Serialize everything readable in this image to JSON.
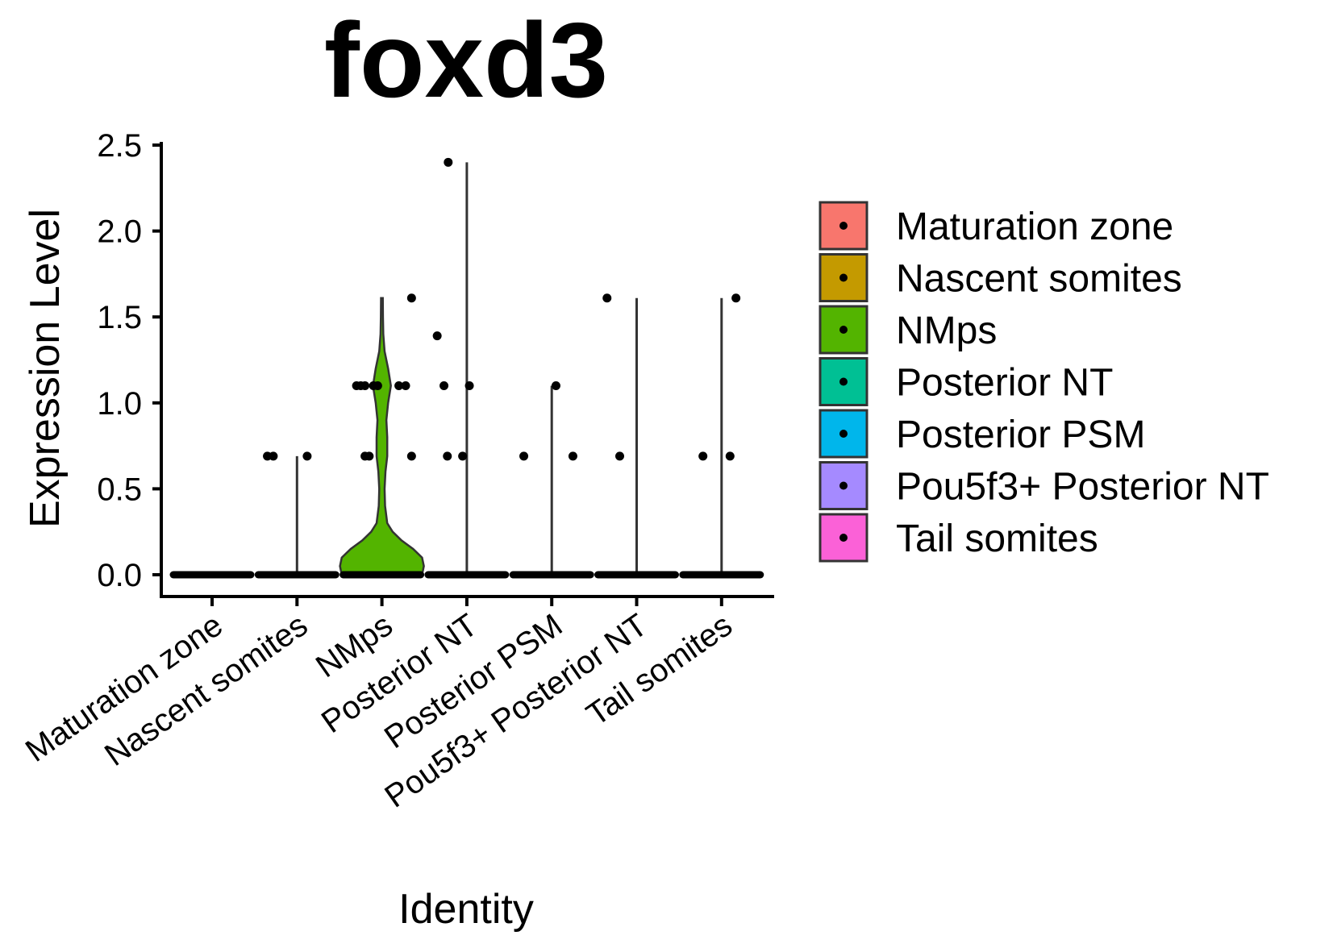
{
  "chart_data": {
    "type": "violin",
    "title": "foxd3",
    "xlabel": "Identity",
    "ylabel": "Expression Level",
    "ylim": [
      0,
      2.5
    ],
    "y_ticks": [
      "0.0",
      "0.5",
      "1.0",
      "1.5",
      "2.0",
      "2.5"
    ],
    "grid": false,
    "legend_position": "right",
    "categories": [
      "Maturation zone",
      "Nascent somites",
      "NMps",
      "Posterior NT",
      "Posterior PSM",
      "Pou5f3+ Posterior NT",
      "Tail somites"
    ],
    "colors": [
      "#F8766D",
      "#C49A00",
      "#53B400",
      "#00C094",
      "#00B6EB",
      "#A58AFF",
      "#FB61D7"
    ],
    "series": [
      {
        "name": "Maturation zone",
        "max": 0.0,
        "points": [
          {
            "x": -0.4,
            "y": 0
          },
          {
            "x": -0.3,
            "y": 0
          },
          {
            "x": -0.2,
            "y": 0
          },
          {
            "x": -0.1,
            "y": 0
          },
          {
            "x": 0.0,
            "y": 0
          },
          {
            "x": 0.1,
            "y": 0
          },
          {
            "x": 0.2,
            "y": 0
          },
          {
            "x": 0.3,
            "y": 0
          },
          {
            "x": 0.4,
            "y": 0
          }
        ]
      },
      {
        "name": "Nascent somites",
        "max": 0.69,
        "points": [
          {
            "x": -0.35,
            "y": 0.69
          },
          {
            "x": -0.28,
            "y": 0.69
          },
          {
            "x": 0.12,
            "y": 0.69
          },
          {
            "x": -0.4,
            "y": 0
          },
          {
            "x": -0.3,
            "y": 0
          },
          {
            "x": -0.2,
            "y": 0
          },
          {
            "x": -0.1,
            "y": 0
          },
          {
            "x": 0.0,
            "y": 0
          },
          {
            "x": 0.1,
            "y": 0
          },
          {
            "x": 0.2,
            "y": 0
          },
          {
            "x": 0.3,
            "y": 0
          },
          {
            "x": 0.4,
            "y": 0
          }
        ]
      },
      {
        "name": "NMps",
        "max": 1.61,
        "density": [
          [
            0.0,
            0.45
          ],
          [
            0.05,
            0.47
          ],
          [
            0.1,
            0.45
          ],
          [
            0.15,
            0.35
          ],
          [
            0.2,
            0.22
          ],
          [
            0.25,
            0.12
          ],
          [
            0.3,
            0.06
          ],
          [
            0.4,
            0.035
          ],
          [
            0.5,
            0.03
          ],
          [
            0.6,
            0.04
          ],
          [
            0.69,
            0.06
          ],
          [
            0.8,
            0.06
          ],
          [
            0.9,
            0.05
          ],
          [
            1.0,
            0.07
          ],
          [
            1.1,
            0.1
          ],
          [
            1.2,
            0.07
          ],
          [
            1.3,
            0.03
          ],
          [
            1.4,
            0.015
          ],
          [
            1.5,
            0.012
          ],
          [
            1.61,
            0.01
          ]
        ],
        "points": [
          {
            "x": -0.3,
            "y": 1.1
          },
          {
            "x": -0.25,
            "y": 1.1
          },
          {
            "x": -0.2,
            "y": 1.1
          },
          {
            "x": -0.1,
            "y": 1.1
          },
          {
            "x": -0.05,
            "y": 1.1
          },
          {
            "x": 0.2,
            "y": 1.1
          },
          {
            "x": 0.28,
            "y": 1.1
          },
          {
            "x": -0.2,
            "y": 0.69
          },
          {
            "x": -0.15,
            "y": 0.69
          },
          {
            "x": 0.35,
            "y": 0.69
          },
          {
            "x": 0.35,
            "y": 1.61
          },
          {
            "x": -0.4,
            "y": 0
          },
          {
            "x": -0.3,
            "y": 0
          },
          {
            "x": -0.2,
            "y": 0
          },
          {
            "x": -0.1,
            "y": 0
          },
          {
            "x": 0.0,
            "y": 0
          },
          {
            "x": 0.1,
            "y": 0
          },
          {
            "x": 0.2,
            "y": 0
          },
          {
            "x": 0.3,
            "y": 0
          },
          {
            "x": 0.4,
            "y": 0
          }
        ]
      },
      {
        "name": "Posterior NT",
        "max": 2.4,
        "points": [
          {
            "x": -0.22,
            "y": 2.4
          },
          {
            "x": -0.35,
            "y": 1.39
          },
          {
            "x": -0.27,
            "y": 1.1
          },
          {
            "x": 0.03,
            "y": 1.1
          },
          {
            "x": -0.23,
            "y": 0.69
          },
          {
            "x": -0.05,
            "y": 0.69
          },
          {
            "x": -0.4,
            "y": 0
          },
          {
            "x": -0.3,
            "y": 0
          },
          {
            "x": -0.2,
            "y": 0
          },
          {
            "x": -0.1,
            "y": 0
          },
          {
            "x": 0.0,
            "y": 0
          },
          {
            "x": 0.1,
            "y": 0
          },
          {
            "x": 0.2,
            "y": 0
          },
          {
            "x": 0.3,
            "y": 0
          },
          {
            "x": 0.4,
            "y": 0
          }
        ]
      },
      {
        "name": "Posterior PSM",
        "max": 1.1,
        "points": [
          {
            "x": 0.05,
            "y": 1.1
          },
          {
            "x": -0.33,
            "y": 0.69
          },
          {
            "x": 0.25,
            "y": 0.69
          },
          {
            "x": -0.4,
            "y": 0
          },
          {
            "x": -0.3,
            "y": 0
          },
          {
            "x": -0.2,
            "y": 0
          },
          {
            "x": -0.1,
            "y": 0
          },
          {
            "x": 0.0,
            "y": 0
          },
          {
            "x": 0.1,
            "y": 0
          },
          {
            "x": 0.2,
            "y": 0
          },
          {
            "x": 0.3,
            "y": 0
          },
          {
            "x": 0.4,
            "y": 0
          }
        ]
      },
      {
        "name": "Pou5f3+ Posterior NT",
        "max": 1.61,
        "points": [
          {
            "x": -0.35,
            "y": 1.61
          },
          {
            "x": -0.2,
            "y": 0.69
          },
          {
            "x": -0.4,
            "y": 0
          },
          {
            "x": -0.3,
            "y": 0
          },
          {
            "x": -0.2,
            "y": 0
          },
          {
            "x": -0.1,
            "y": 0
          },
          {
            "x": 0.0,
            "y": 0
          },
          {
            "x": 0.1,
            "y": 0
          },
          {
            "x": 0.2,
            "y": 0
          },
          {
            "x": 0.3,
            "y": 0
          },
          {
            "x": 0.4,
            "y": 0
          }
        ]
      },
      {
        "name": "Tail somites",
        "max": 1.61,
        "points": [
          {
            "x": 0.17,
            "y": 1.61
          },
          {
            "x": -0.22,
            "y": 0.69
          },
          {
            "x": 0.1,
            "y": 0.69
          },
          {
            "x": -0.4,
            "y": 0
          },
          {
            "x": -0.3,
            "y": 0
          },
          {
            "x": -0.2,
            "y": 0
          },
          {
            "x": -0.1,
            "y": 0
          },
          {
            "x": 0.0,
            "y": 0
          },
          {
            "x": 0.1,
            "y": 0
          },
          {
            "x": 0.2,
            "y": 0
          },
          {
            "x": 0.3,
            "y": 0
          },
          {
            "x": 0.4,
            "y": 0
          }
        ]
      }
    ]
  }
}
